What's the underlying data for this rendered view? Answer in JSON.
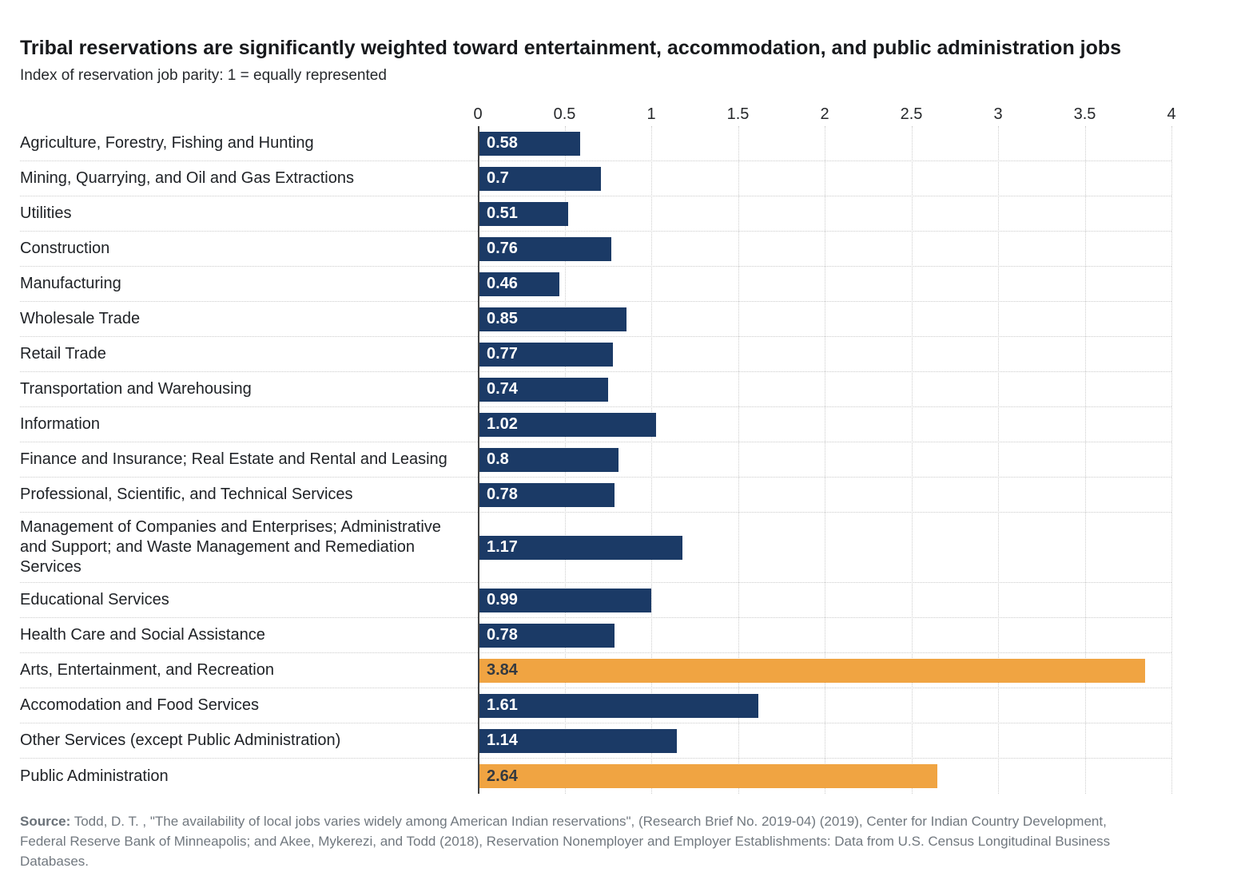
{
  "title": "Tribal reservations are significantly weighted toward entertainment, accommodation, and public administration jobs",
  "subtitle": "Index of reservation job parity: 1 = equally represented",
  "colors": {
    "bar_navy": "#1b3a66",
    "bar_orange": "#f0a442",
    "value_label_on_navy": "#ffffff",
    "value_label_on_orange": "#343a41",
    "zero_axis_line": "#424242",
    "gridline": "#cdcdcd"
  },
  "chart_data": {
    "type": "bar",
    "orientation": "horizontal",
    "title": "Tribal reservations are significantly weighted toward entertainment, accommodation, and public administration jobs",
    "subtitle": "Index of reservation job parity: 1 = equally represented",
    "categories": [
      "Agriculture, Forestry, Fishing and Hunting",
      "Mining, Quarrying, and Oil and Gas Extractions",
      "Utilities",
      "Construction",
      "Manufacturing",
      "Wholesale Trade",
      "Retail Trade",
      "Transportation and Warehousing",
      "Information",
      "Finance and Insurance; Real Estate and Rental and Leasing",
      "Professional, Scientific, and Technical Services",
      "Management of Companies and Enterprises; Administrative and Support; and Waste Management and Remediation Services",
      "Educational Services",
      "Health Care and Social Assistance",
      "Arts, Entertainment, and Recreation",
      "Accomodation and Food Services",
      "Other Services (except Public Administration)",
      "Public Administration"
    ],
    "values": [
      0.58,
      0.7,
      0.51,
      0.76,
      0.46,
      0.85,
      0.77,
      0.74,
      1.02,
      0.8,
      0.78,
      1.17,
      0.99,
      0.78,
      3.84,
      1.61,
      1.14,
      2.64
    ],
    "value_labels": [
      "0.58",
      "0.7",
      "0.51",
      "0.76",
      "0.46",
      "0.85",
      "0.77",
      "0.74",
      "1.02",
      "0.8",
      "0.78",
      "1.17",
      "0.99",
      "0.78",
      "3.84",
      "1.61",
      "1.14",
      "2.64"
    ],
    "highlighted_categories": [
      "Arts, Entertainment, and Recreation",
      "Public Administration"
    ],
    "bar_color": "#1b3a66",
    "highlight_color": "#f0a442",
    "xlim": [
      0,
      4
    ],
    "x_ticks": [
      0,
      0.5,
      1,
      1.5,
      2,
      2.5,
      3,
      3.5,
      4
    ],
    "grid": "vertical dotted gridlines at 0.5 intervals; dotted horizontal row separators; solid dark line at 0",
    "legend": "none",
    "value_labels_position": "inside-left"
  },
  "source": {
    "label": "Source:",
    "text": " Todd, D. T. , \"The availability of local jobs varies widely among American Indian reservations\", (Research Brief No. 2019-04) (2019), Center for Indian Country Development, Federal Reserve Bank of Minneapolis; and Akee, Mykerezi, and Todd (2018), Reservation Nonemployer and Employer Establishments: Data from U.S. Census Longitudinal Business Databases."
  }
}
